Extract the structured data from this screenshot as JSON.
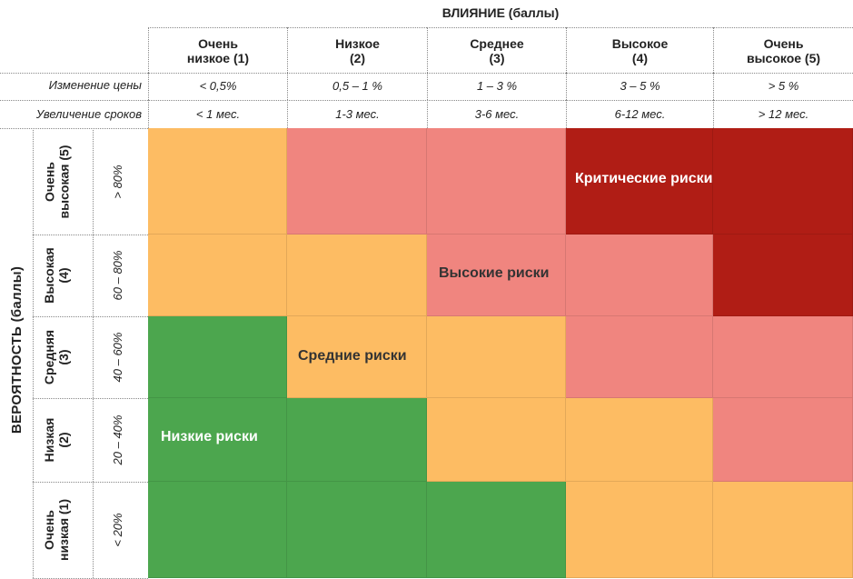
{
  "colors": {
    "green": "#4CA64E",
    "orange": "#FDBC63",
    "pink": "#F0857F",
    "red": "#B01D15"
  },
  "header": {
    "impact_title": "ВЛИЯНИЕ (баллы)",
    "impact_levels": [
      {
        "name": "Очень\nнизкое (1)",
        "price": "< 0,5%",
        "time": "< 1 мес."
      },
      {
        "name": "Низкое\n(2)",
        "price": "0,5 – 1 %",
        "time": "1-3 мес."
      },
      {
        "name": "Среднее\n(3)",
        "price": "1 – 3 %",
        "time": "3-6 мес."
      },
      {
        "name": "Высокое\n(4)",
        "price": "3 – 5 %",
        "time": "6-12 мес."
      },
      {
        "name": "Очень\nвысокое (5)",
        "price": "> 5 %",
        "time": "> 12 мес."
      }
    ],
    "price_row_label": "Изменение цены",
    "time_row_label": "Увеличение сроков"
  },
  "probability": {
    "axis_title": "ВЕРОЯТНОСТЬ (баллы)",
    "levels": [
      {
        "name": "Очень\nвысокая (5)",
        "range": "> 80%"
      },
      {
        "name": "Высокая\n(4)",
        "range": "60 – 80%"
      },
      {
        "name": "Средняя\n(3)",
        "range": "40 – 60%"
      },
      {
        "name": "Низкая\n(2)",
        "range": "20 – 40%"
      },
      {
        "name": "Очень\nнизкая (1)",
        "range": "< 20%"
      }
    ]
  },
  "grid": [
    [
      "orange",
      "pink",
      "pink",
      "red",
      "red"
    ],
    [
      "orange",
      "orange",
      "pink",
      "pink",
      "red"
    ],
    [
      "green",
      "orange",
      "orange",
      "pink",
      "pink"
    ],
    [
      "green",
      "green",
      "orange",
      "orange",
      "pink"
    ],
    [
      "green",
      "green",
      "green",
      "orange",
      "orange"
    ]
  ],
  "zones": {
    "critical": "Критические риски",
    "high": "Высокие риски",
    "medium": "Средние риски",
    "low": "Низкие риски"
  }
}
